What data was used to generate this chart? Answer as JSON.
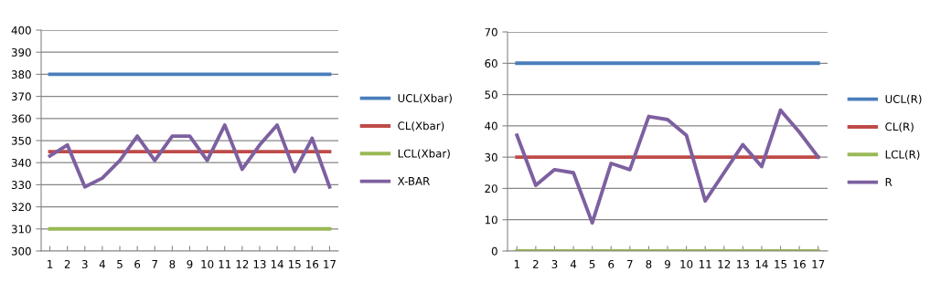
{
  "chart_data": [
    {
      "type": "line",
      "categories": [
        "1",
        "2",
        "3",
        "4",
        "5",
        "6",
        "7",
        "8",
        "9",
        "10",
        "11",
        "12",
        "13",
        "14",
        "15",
        "16",
        "17"
      ],
      "ylim": [
        300,
        400
      ],
      "yticks": [
        300,
        310,
        320,
        330,
        340,
        350,
        360,
        370,
        380,
        390,
        400
      ],
      "grid": "y",
      "legend": "right",
      "series": [
        {
          "name": "UCL(Xbar)",
          "color": "#4a7ebb",
          "values": [
            380,
            380,
            380,
            380,
            380,
            380,
            380,
            380,
            380,
            380,
            380,
            380,
            380,
            380,
            380,
            380,
            380
          ]
        },
        {
          "name": "CL(Xbar)",
          "color": "#be4b48",
          "values": [
            345,
            345,
            345,
            345,
            345,
            345,
            345,
            345,
            345,
            345,
            345,
            345,
            345,
            345,
            345,
            345,
            345
          ]
        },
        {
          "name": "LCL(Xbar)",
          "color": "#98b954",
          "values": [
            310,
            310,
            310,
            310,
            310,
            310,
            310,
            310,
            310,
            310,
            310,
            310,
            310,
            310,
            310,
            310,
            310
          ]
        },
        {
          "name": "X-BAR",
          "color": "#7d60a0",
          "values": [
            343,
            348,
            329,
            333,
            341,
            352,
            341,
            352,
            352,
            341,
            357,
            337,
            348,
            357,
            336,
            351,
            329
          ]
        }
      ]
    },
    {
      "type": "line",
      "categories": [
        "1",
        "2",
        "3",
        "4",
        "5",
        "6",
        "7",
        "8",
        "9",
        "10",
        "11",
        "12",
        "13",
        "14",
        "15",
        "16",
        "17"
      ],
      "ylim": [
        0,
        70
      ],
      "yticks": [
        0,
        10,
        20,
        30,
        40,
        50,
        60,
        70
      ],
      "grid": "y",
      "legend": "right",
      "series": [
        {
          "name": "UCL(R)",
          "color": "#4a7ebb",
          "values": [
            60,
            60,
            60,
            60,
            60,
            60,
            60,
            60,
            60,
            60,
            60,
            60,
            60,
            60,
            60,
            60,
            60
          ]
        },
        {
          "name": "CL(R)",
          "color": "#be4b48",
          "values": [
            30,
            30,
            30,
            30,
            30,
            30,
            30,
            30,
            30,
            30,
            30,
            30,
            30,
            30,
            30,
            30,
            30
          ]
        },
        {
          "name": "LCL(R)",
          "color": "#98b954",
          "values": [
            0,
            0,
            0,
            0,
            0,
            0,
            0,
            0,
            0,
            0,
            0,
            0,
            0,
            0,
            0,
            0,
            0
          ]
        },
        {
          "name": "R",
          "color": "#7d60a0",
          "values": [
            37,
            21,
            26,
            25,
            9,
            28,
            26,
            43,
            42,
            37,
            16,
            25,
            34,
            27,
            45,
            38,
            30
          ]
        }
      ]
    }
  ]
}
